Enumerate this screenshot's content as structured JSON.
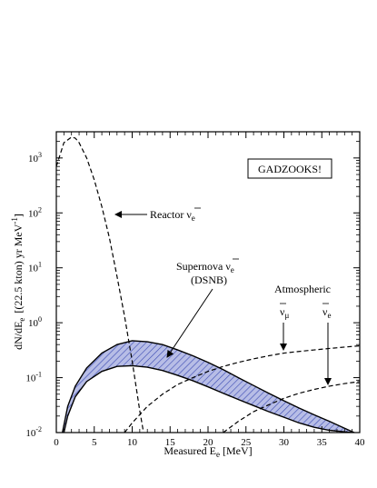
{
  "chart_data": {
    "type": "line",
    "title": "",
    "xlabel": "Measured E",
    "xlabel_sub": "e",
    "xlabel_unit": "[MeV]",
    "ylabel": "dN/dE",
    "ylabel_sub": "e",
    "ylabel_unit": "[(22.5 kton) yr MeV",
    "ylabel_sup": "-1",
    "ylabel_close": "]",
    "xlim": [
      0,
      40
    ],
    "ylim": [
      0.01,
      3000
    ],
    "yscale": "log",
    "grid": false,
    "x_ticks": [
      0,
      5,
      10,
      15,
      20,
      25,
      30,
      35,
      40
    ],
    "x_tick_labels": [
      "0",
      "5",
      "10",
      "15",
      "20",
      "25",
      "30",
      "35",
      "40"
    ],
    "y_ticks": [
      {
        "value": 0.01,
        "base": "10",
        "exp": "-2"
      },
      {
        "value": 0.1,
        "base": "10",
        "exp": "-1"
      },
      {
        "value": 1,
        "base": "10",
        "exp": "0"
      },
      {
        "value": 10,
        "base": "10",
        "exp": "1"
      },
      {
        "value": 100,
        "base": "10",
        "exp": "2"
      },
      {
        "value": 1000,
        "base": "10",
        "exp": "3"
      }
    ],
    "series": [
      {
        "name": "Reactor ν̄e",
        "style": "dashed",
        "x": [
          0,
          1,
          2,
          2.5,
          3,
          4,
          5,
          6,
          7,
          8,
          9,
          10,
          11,
          11.5
        ],
        "y": [
          700,
          1900,
          2400,
          2300,
          1900,
          1000,
          400,
          130,
          35,
          7,
          1.3,
          0.2,
          0.025,
          0.01
        ]
      },
      {
        "name": "Supernova ν̄e (DSNB) upper bound",
        "style": "solid",
        "x": [
          0.8,
          1.5,
          2.5,
          4,
          6,
          8,
          10,
          12,
          14,
          16,
          18,
          20,
          22,
          24,
          26,
          28,
          30,
          32,
          34,
          36,
          38,
          40
        ],
        "y": [
          0.01,
          0.03,
          0.07,
          0.15,
          0.28,
          0.4,
          0.47,
          0.45,
          0.4,
          0.32,
          0.25,
          0.19,
          0.14,
          0.1,
          0.072,
          0.052,
          0.038,
          0.028,
          0.021,
          0.016,
          0.012,
          0.009
        ]
      },
      {
        "name": "Supernova ν̄e (DSNB) lower bound",
        "style": "solid",
        "x": [
          1,
          1.5,
          2.5,
          4,
          6,
          8,
          10,
          12,
          14,
          16,
          18,
          20,
          22,
          24,
          26,
          28,
          30,
          32,
          34,
          36,
          38,
          39
        ],
        "y": [
          0.01,
          0.02,
          0.045,
          0.085,
          0.13,
          0.16,
          0.165,
          0.155,
          0.135,
          0.11,
          0.088,
          0.068,
          0.052,
          0.04,
          0.031,
          0.024,
          0.019,
          0.015,
          0.0125,
          0.011,
          0.0103,
          0.01
        ]
      },
      {
        "name": "Atmospheric ν̄μ",
        "style": "dashed",
        "x": [
          9,
          10,
          12,
          14,
          16,
          18,
          20,
          22,
          24,
          26,
          28,
          30,
          32,
          34,
          36,
          38,
          40
        ],
        "y": [
          0.01,
          0.015,
          0.03,
          0.05,
          0.075,
          0.1,
          0.13,
          0.16,
          0.19,
          0.22,
          0.25,
          0.28,
          0.3,
          0.32,
          0.34,
          0.36,
          0.38
        ]
      },
      {
        "name": "Atmospheric ν̄e",
        "style": "dashed",
        "x": [
          22,
          24,
          26,
          28,
          30,
          32,
          34,
          36,
          38,
          40
        ],
        "y": [
          0.01,
          0.016,
          0.024,
          0.032,
          0.042,
          0.052,
          0.061,
          0.07,
          0.078,
          0.085
        ]
      }
    ],
    "annotations": {
      "badge": "GADZOOKS!",
      "reactor_label": "Reactor ν",
      "reactor_sub": "e",
      "supernova_label": "Supernova ν",
      "supernova_sub": "e",
      "dsnb_label": "(DSNB)",
      "atmospheric_label": "Atmospheric",
      "atm_mu_label": "ν",
      "atm_mu_sub": "μ",
      "atm_e_label": "ν",
      "atm_e_sub": "e"
    }
  },
  "colors": {
    "band_fill": "#b7bde6",
    "hatch": "#3a4ab3",
    "line": "#000000"
  }
}
